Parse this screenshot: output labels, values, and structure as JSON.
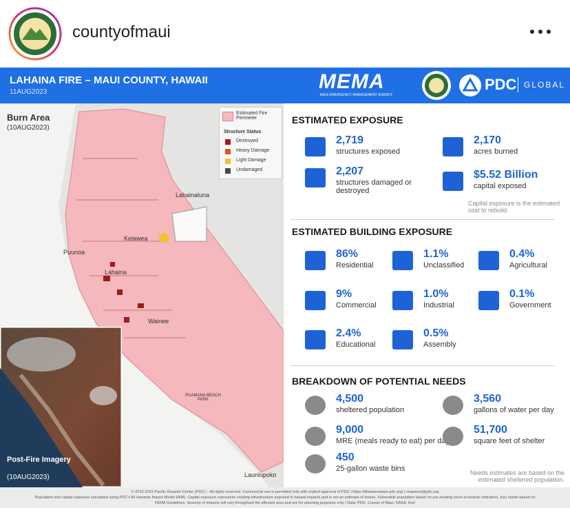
{
  "post": {
    "username": "countyofmaui"
  },
  "infographic": {
    "title": "LAHAINA FIRE – MAUI COUNTY, HAWAII",
    "date": "11AUG2023",
    "logos": {
      "mema": "MEMA",
      "mema_sub": "MAUI EMERGENCY MANAGEMENT AGENCY",
      "pdc": "PDC",
      "global": "GLOBAL"
    },
    "map": {
      "title": "Burn Area",
      "date": "(10AUG2023)",
      "legend": {
        "perimeter": "Estimated Fire Perimeter",
        "status_title": "Structure Status",
        "items": [
          {
            "label": "Destroyed",
            "color": "#9c1c1c"
          },
          {
            "label": "Heavy Damage",
            "color": "#e2541e"
          },
          {
            "label": "Light Damage",
            "color": "#f2c12e"
          },
          {
            "label": "Undamaged",
            "color": "#4a4a4a"
          }
        ]
      },
      "places": [
        "Lahainaluna",
        "Kelawea",
        "Puunoa",
        "Lahaina",
        "Wainee",
        "PUAMANA BEACH PARK",
        "Launiupoko"
      ],
      "inset": {
        "title": "Post-Fire Imagery",
        "date": "(10AUG2023)"
      }
    },
    "exposure": {
      "title": "ESTIMATED EXPOSURE",
      "items": [
        {
          "value": "2,719",
          "label": "structures exposed"
        },
        {
          "value": "2,170",
          "label": "acres burned"
        },
        {
          "value": "2,207",
          "label": "structures damaged or destroyed"
        },
        {
          "value": "$5.52 Billion",
          "label": "capital exposed"
        }
      ],
      "note": "Capital exposure is the estimated cost to rebuild."
    },
    "building": {
      "title": "ESTIMATED BUILDING EXPOSURE",
      "items": [
        {
          "value": "86%",
          "label": "Residential"
        },
        {
          "value": "1.1%",
          "label": "Unclassified"
        },
        {
          "value": "0.4%",
          "label": "Agricultural"
        },
        {
          "value": "9%",
          "label": "Commercial"
        },
        {
          "value": "1.0%",
          "label": "Industrial"
        },
        {
          "value": "0.1%",
          "label": "Government"
        },
        {
          "value": "2.4%",
          "label": "Educational"
        },
        {
          "value": "0.5%",
          "label": "Assembly"
        }
      ]
    },
    "needs": {
      "title": "BREAKDOWN OF POTENTIAL NEEDS",
      "items": [
        {
          "value": "4,500",
          "label": "sheltered population"
        },
        {
          "value": "3,560",
          "label": "gallons of water per day"
        },
        {
          "value": "9,000",
          "label": "MRE (meals ready to eat) per day"
        },
        {
          "value": "51,700",
          "label": "square feet of shelter"
        },
        {
          "value": "450",
          "label": "25-gallon waste bins"
        }
      ],
      "note": "Needs estimates are based on the estimated sheltered population."
    },
    "footer": [
      "© 2015-2023 Pacific Disaster Center (PDC) – All rights reserved. Commercial use is permitted only with explicit approval of PDC | https://disasteraware.pdc.org/ | response@pdc.org",
      "Population and capital exposure calculated using PDC's All Hazards Impact Model (AIM). Capital exposure represents existing infrastructure exposed to hazard impacts and is not an estimate of losses. Vulnerable population based on pre-existing socio-economic indicators. Key needs based on",
      "FEMA Guidelines. Severity of impacts will vary throughout the affected area and are for planning purposes only | Data: PDC, County of Maui, NASA, Esri"
    ]
  }
}
